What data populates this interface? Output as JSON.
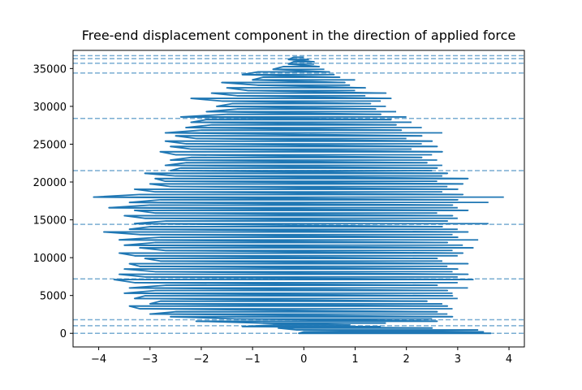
{
  "chart_data": {
    "type": "line",
    "title": "Free-end displacement component in the direction of applied force",
    "xlabel": "",
    "ylabel": "",
    "xlim": [
      -4.5,
      4.3
    ],
    "ylim": [
      -1800,
      37400
    ],
    "x_ticks": [
      -4,
      -3,
      -2,
      -1,
      0,
      1,
      2,
      3,
      4
    ],
    "x_tick_labels": [
      "−4",
      "−3",
      "−2",
      "−1",
      "0",
      "1",
      "2",
      "3",
      "4"
    ],
    "y_ticks": [
      0,
      5000,
      10000,
      15000,
      20000,
      25000,
      30000,
      35000
    ],
    "y_tick_labels": [
      "0",
      "5000",
      "10000",
      "15000",
      "20000",
      "25000",
      "30000",
      "35000"
    ],
    "grid": false,
    "legend": "none",
    "series": [
      {
        "color": "#1f77b4",
        "style": "solid",
        "note_points": "oscillating trace: each horizontal stroke spans from left_x to right_x at the given y",
        "strokes": [
          [
            0,
            -0.1,
            3.65
          ],
          [
            200,
            0.0,
            3.5
          ],
          [
            450,
            -0.15,
            3.4
          ],
          [
            700,
            -0.5,
            2.5
          ],
          [
            900,
            -1.2,
            1.5
          ],
          [
            1100,
            -0.6,
            0.9
          ],
          [
            1350,
            -0.8,
            1.6
          ],
          [
            1600,
            -2.1,
            2.6
          ],
          [
            1900,
            -1.3,
            2.5
          ],
          [
            2200,
            -2.6,
            2.9
          ],
          [
            2550,
            -3.0,
            2.8
          ],
          [
            2850,
            -2.5,
            2.6
          ],
          [
            3250,
            -3.2,
            2.9
          ],
          [
            3600,
            -3.4,
            2.8
          ],
          [
            3900,
            -3.0,
            2.7
          ],
          [
            4250,
            -2.8,
            2.4
          ],
          [
            4600,
            -3.3,
            3.0
          ],
          [
            4950,
            -3.1,
            2.9
          ],
          [
            5300,
            -3.5,
            2.9
          ],
          [
            5650,
            -2.9,
            2.8
          ],
          [
            6000,
            -3.4,
            3.2
          ],
          [
            6350,
            -2.7,
            2.6
          ],
          [
            6700,
            -3.3,
            3.0
          ],
          [
            7100,
            -3.7,
            3.3
          ],
          [
            7450,
            -3.1,
            3.0
          ],
          [
            7800,
            -3.6,
            3.2
          ],
          [
            8150,
            -2.9,
            2.9
          ],
          [
            8500,
            -3.5,
            3.0
          ],
          [
            8850,
            -3.2,
            2.8
          ],
          [
            9200,
            -3.4,
            3.2
          ],
          [
            9550,
            -2.8,
            2.7
          ],
          [
            9900,
            -3.1,
            2.6
          ],
          [
            10250,
            -3.3,
            3.0
          ],
          [
            10600,
            -3.6,
            3.1
          ],
          [
            10950,
            -2.7,
            2.9
          ],
          [
            11300,
            -3.2,
            3.3
          ],
          [
            11650,
            -3.5,
            3.1
          ],
          [
            12000,
            -2.9,
            2.8
          ],
          [
            12350,
            -3.6,
            3.4
          ],
          [
            12700,
            -2.8,
            3.0
          ],
          [
            13050,
            -3.2,
            2.9
          ],
          [
            13400,
            -3.9,
            3.2
          ],
          [
            13750,
            -3.4,
            3.0
          ],
          [
            14100,
            -3.0,
            2.7
          ],
          [
            14500,
            -3.3,
            3.6
          ],
          [
            14850,
            -2.7,
            2.8
          ],
          [
            15200,
            -3.1,
            3.0
          ],
          [
            15550,
            -3.5,
            2.9
          ],
          [
            15900,
            -2.9,
            2.6
          ],
          [
            16250,
            -3.3,
            3.2
          ],
          [
            16600,
            -3.8,
            3.0
          ],
          [
            16950,
            -3.0,
            2.9
          ],
          [
            17300,
            -3.4,
            3.6
          ],
          [
            17650,
            -2.8,
            3.0
          ],
          [
            18000,
            -4.1,
            3.9
          ],
          [
            18350,
            -3.2,
            3.1
          ],
          [
            18700,
            -2.9,
            2.7
          ],
          [
            19050,
            -3.3,
            3.0
          ],
          [
            19400,
            -2.6,
            2.8
          ],
          [
            19750,
            -3.0,
            3.1
          ],
          [
            20100,
            -2.7,
            2.6
          ],
          [
            20450,
            -2.9,
            3.2
          ],
          [
            20800,
            -2.5,
            2.7
          ],
          [
            21150,
            -3.1,
            2.8
          ],
          [
            21500,
            -2.6,
            2.5
          ],
          [
            21850,
            -2.4,
            2.6
          ],
          [
            22200,
            -2.7,
            2.7
          ],
          [
            22550,
            -2.3,
            2.4
          ],
          [
            22900,
            -2.6,
            2.6
          ],
          [
            23250,
            -2.2,
            2.3
          ],
          [
            23600,
            -2.5,
            2.5
          ],
          [
            24000,
            -2.8,
            2.7
          ],
          [
            24350,
            -2.2,
            2.1
          ],
          [
            24700,
            -2.6,
            2.6
          ],
          [
            25050,
            -2.3,
            2.3
          ],
          [
            25400,
            -2.7,
            2.5
          ],
          [
            25750,
            -2.1,
            2.0
          ],
          [
            26100,
            -2.5,
            2.3
          ],
          [
            26500,
            -2.7,
            2.7
          ],
          [
            26850,
            -2.0,
            1.9
          ],
          [
            27200,
            -2.3,
            2.3
          ],
          [
            27550,
            -1.8,
            1.8
          ],
          [
            27900,
            -2.2,
            2.1
          ],
          [
            28250,
            -1.9,
            1.7
          ],
          [
            28600,
            -2.4,
            2.0
          ],
          [
            28950,
            -1.5,
            1.5
          ],
          [
            29300,
            -1.9,
            1.8
          ],
          [
            29650,
            -1.3,
            1.4
          ],
          [
            30000,
            -1.7,
            1.6
          ],
          [
            30350,
            -1.4,
            1.3
          ],
          [
            30700,
            -1.6,
            1.5
          ],
          [
            31050,
            -2.2,
            1.7
          ],
          [
            31400,
            -1.3,
            1.2
          ],
          [
            31750,
            -1.8,
            1.6
          ],
          [
            32100,
            -1.1,
            1.0
          ],
          [
            32450,
            -1.5,
            1.2
          ],
          [
            32800,
            -0.9,
            0.9
          ],
          [
            33150,
            -1.6,
            0.8
          ],
          [
            33500,
            -1.0,
            1.0
          ],
          [
            33850,
            -0.8,
            0.7
          ],
          [
            34200,
            -1.2,
            0.6
          ],
          [
            34550,
            -0.9,
            0.5
          ],
          [
            34900,
            -0.6,
            0.4
          ],
          [
            35250,
            -0.4,
            0.3
          ],
          [
            35600,
            -0.3,
            0.2
          ],
          [
            35900,
            -0.2,
            0.2
          ],
          [
            36200,
            -0.3,
            0.1
          ],
          [
            36500,
            -0.2,
            0.0
          ]
        ]
      }
    ],
    "hlines": {
      "color": "#1f77b4",
      "style": "dashed",
      "alpha": 0.6,
      "y": [
        0,
        1000,
        1800,
        7200,
        14400,
        21500,
        28400,
        34400,
        35700,
        36300,
        36700
      ]
    }
  }
}
